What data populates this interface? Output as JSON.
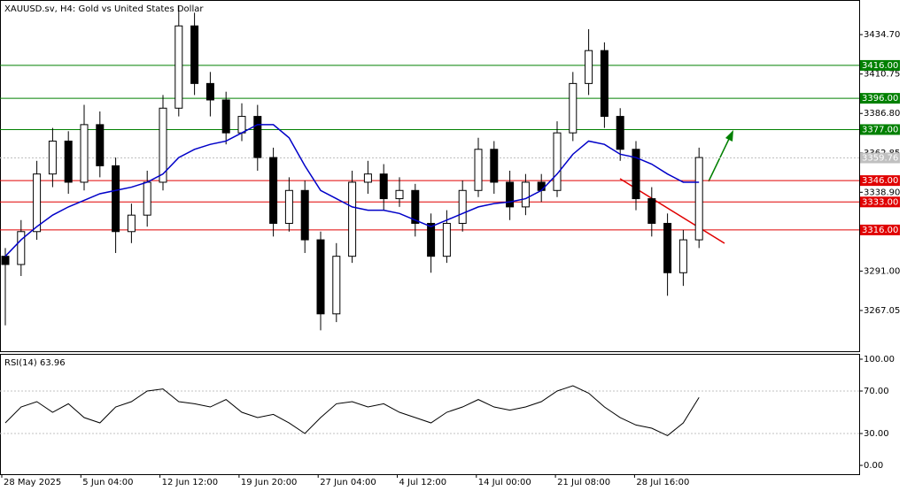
{
  "chart_data": [
    {
      "type": "candlestick",
      "title": "XAUUSD.sv, H4:  Gold vs United States Dollar",
      "ylim": [
        3242.3,
        3455.2
      ],
      "yticks": [
        {
          "value": 3434.7,
          "label": "3434.70"
        },
        {
          "value": 3410.75,
          "label": "3410.75"
        },
        {
          "value": 3386.8,
          "label": "3386.80"
        },
        {
          "value": 3362.85,
          "label": "3362.85"
        },
        {
          "value": 3338.9,
          "label": "3338.90"
        },
        {
          "value": 3291,
          "label": "3291.00"
        },
        {
          "value": 3267.05,
          "label": "3267.05"
        }
      ],
      "xticks": [
        "28 May 2025",
        "5 Jun 04:00",
        "12 Jun 12:00",
        "19 Jun 20:00",
        "27 Jun 04:00",
        "4 Jul 12:00",
        "14 Jul 00:00",
        "21 Jul 08:00",
        "28 Jul 16:00"
      ],
      "ohlc": [
        [
          3300,
          3305,
          3258,
          3295
        ],
        [
          3295,
          3322,
          3288,
          3315
        ],
        [
          3315,
          3358,
          3310,
          3350
        ],
        [
          3350,
          3378,
          3342,
          3370
        ],
        [
          3370,
          3376,
          3338,
          3345
        ],
        [
          3345,
          3392,
          3340,
          3380
        ],
        [
          3380,
          3388,
          3348,
          3355
        ],
        [
          3355,
          3360,
          3302,
          3315
        ],
        [
          3315,
          3332,
          3308,
          3325
        ],
        [
          3325,
          3352,
          3318,
          3345
        ],
        [
          3345,
          3398,
          3340,
          3390
        ],
        [
          3390,
          3452,
          3385,
          3440
        ],
        [
          3440,
          3448,
          3398,
          3405
        ],
        [
          3405,
          3412,
          3385,
          3395
        ],
        [
          3395,
          3400,
          3368,
          3375
        ],
        [
          3375,
          3393,
          3370,
          3385
        ],
        [
          3385,
          3392,
          3352,
          3360
        ],
        [
          3360,
          3366,
          3312,
          3320
        ],
        [
          3320,
          3348,
          3315,
          3340
        ],
        [
          3340,
          3346,
          3302,
          3310
        ],
        [
          3310,
          3315,
          3255,
          3265
        ],
        [
          3265,
          3308,
          3260,
          3300
        ],
        [
          3300,
          3352,
          3296,
          3345
        ],
        [
          3345,
          3358,
          3338,
          3350
        ],
        [
          3350,
          3356,
          3328,
          3335
        ],
        [
          3335,
          3348,
          3330,
          3340
        ],
        [
          3340,
          3344,
          3312,
          3320
        ],
        [
          3320,
          3326,
          3290,
          3300
        ],
        [
          3300,
          3328,
          3296,
          3320
        ],
        [
          3320,
          3346,
          3315,
          3340
        ],
        [
          3340,
          3372,
          3336,
          3365
        ],
        [
          3365,
          3370,
          3338,
          3345
        ],
        [
          3345,
          3352,
          3322,
          3330
        ],
        [
          3330,
          3350,
          3325,
          3345
        ],
        [
          3345,
          3350,
          3333,
          3340
        ],
        [
          3340,
          3382,
          3336,
          3375
        ],
        [
          3375,
          3412,
          3370,
          3405
        ],
        [
          3405,
          3438,
          3398,
          3425
        ],
        [
          3425,
          3430,
          3378,
          3385
        ],
        [
          3385,
          3390,
          3358,
          3365
        ],
        [
          3365,
          3370,
          3328,
          3335
        ],
        [
          3335,
          3342,
          3312,
          3320
        ],
        [
          3320,
          3326,
          3276,
          3290
        ],
        [
          3290,
          3316,
          3282,
          3310
        ],
        [
          3310,
          3366,
          3305,
          3360
        ]
      ],
      "ma": {
        "color": "#0000c8",
        "values": [
          3300,
          3310,
          3318,
          3325,
          3330,
          3334,
          3338,
          3340,
          3342,
          3345,
          3350,
          3360,
          3365,
          3368,
          3370,
          3375,
          3380,
          3380,
          3372,
          3355,
          3340,
          3335,
          3330,
          3328,
          3328,
          3326,
          3322,
          3318,
          3322,
          3326,
          3330,
          3332,
          3333,
          3335,
          3340,
          3350,
          3362,
          3370,
          3368,
          3362,
          3360,
          3356,
          3350,
          3345,
          3345
        ]
      },
      "levels": [
        {
          "value": 3416,
          "label": "3416.00",
          "color": "#008000"
        },
        {
          "value": 3396,
          "label": "3396.00",
          "color": "#008000"
        },
        {
          "value": 3377,
          "label": "3377.00",
          "color": "#008000"
        },
        {
          "value": 3346,
          "label": "3346.00",
          "color": "#e00000"
        },
        {
          "value": 3333,
          "label": "3333.00",
          "color": "#e00000"
        },
        {
          "value": 3316,
          "label": "3316.00",
          "color": "#e00000"
        }
      ],
      "last_price": {
        "value": 3359.76,
        "label": "3359.76"
      }
    },
    {
      "type": "line",
      "title": "RSI(14) 63.96",
      "ylim": [
        -8.3,
        105
      ],
      "yticks": [
        {
          "value": 100,
          "label": "100.00"
        },
        {
          "value": 70,
          "label": "70.00"
        },
        {
          "value": 30,
          "label": "30.00"
        },
        {
          "value": 0,
          "label": "0.00"
        }
      ],
      "color": "#000000",
      "values": [
        40,
        55,
        60,
        50,
        58,
        45,
        40,
        55,
        60,
        70,
        72,
        60,
        58,
        55,
        62,
        50,
        45,
        48,
        40,
        30,
        45,
        58,
        60,
        55,
        58,
        50,
        45,
        40,
        50,
        55,
        62,
        55,
        52,
        55,
        60,
        70,
        75,
        68,
        55,
        45,
        38,
        35,
        28,
        40,
        63.96
      ]
    }
  ]
}
